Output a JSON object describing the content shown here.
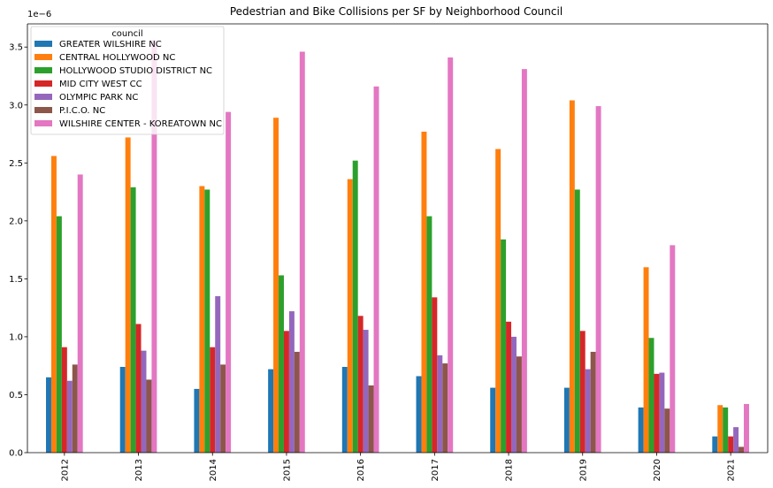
{
  "chart_data": {
    "type": "bar",
    "title": "Pedestrian and Bike Collisions per SF by Neighborhood Council",
    "xlabel": "",
    "ylabel": "",
    "y_offset_text": "1e−6",
    "categories": [
      "2012",
      "2013",
      "2014",
      "2015",
      "2016",
      "2017",
      "2018",
      "2019",
      "2020",
      "2021"
    ],
    "ylim": [
      0,
      3.7
    ],
    "yticks": [
      "0.0",
      "0.5",
      "1.0",
      "1.5",
      "2.0",
      "2.5",
      "3.0",
      "3.5"
    ],
    "legend": {
      "title": "council",
      "position": "top-left"
    },
    "grid": false,
    "series": [
      {
        "name": "GREATER WILSHIRE NC",
        "color": "#1f77b4",
        "values": [
          0.65,
          0.74,
          0.55,
          0.72,
          0.74,
          0.66,
          0.56,
          0.56,
          0.39,
          0.14
        ]
      },
      {
        "name": "CENTRAL HOLLYWOOD NC",
        "color": "#ff7f0e",
        "values": [
          2.56,
          2.72,
          2.3,
          2.89,
          2.36,
          2.77,
          2.62,
          3.04,
          1.6,
          0.41
        ]
      },
      {
        "name": "HOLLYWOOD STUDIO DISTRICT NC",
        "color": "#2ca02c",
        "values": [
          2.04,
          2.29,
          2.27,
          1.53,
          2.52,
          2.04,
          1.84,
          2.27,
          0.99,
          0.39
        ]
      },
      {
        "name": "MID CITY WEST CC",
        "color": "#d62728",
        "values": [
          0.91,
          1.11,
          0.91,
          1.05,
          1.18,
          1.34,
          1.13,
          1.05,
          0.68,
          0.14
        ]
      },
      {
        "name": "OLYMPIC PARK NC",
        "color": "#9467bd",
        "values": [
          0.62,
          0.88,
          1.35,
          1.22,
          1.06,
          0.84,
          1.0,
          0.72,
          0.69,
          0.22
        ]
      },
      {
        "name": "P.I.C.O. NC",
        "color": "#8c564b",
        "values": [
          0.76,
          0.63,
          0.76,
          0.87,
          0.58,
          0.77,
          0.83,
          0.87,
          0.38,
          0.05
        ]
      },
      {
        "name": "WILSHIRE CENTER - KOREATOWN NC",
        "color": "#e377c2",
        "values": [
          2.4,
          3.56,
          2.94,
          3.46,
          3.16,
          3.41,
          3.31,
          2.99,
          1.79,
          0.42
        ]
      }
    ]
  }
}
